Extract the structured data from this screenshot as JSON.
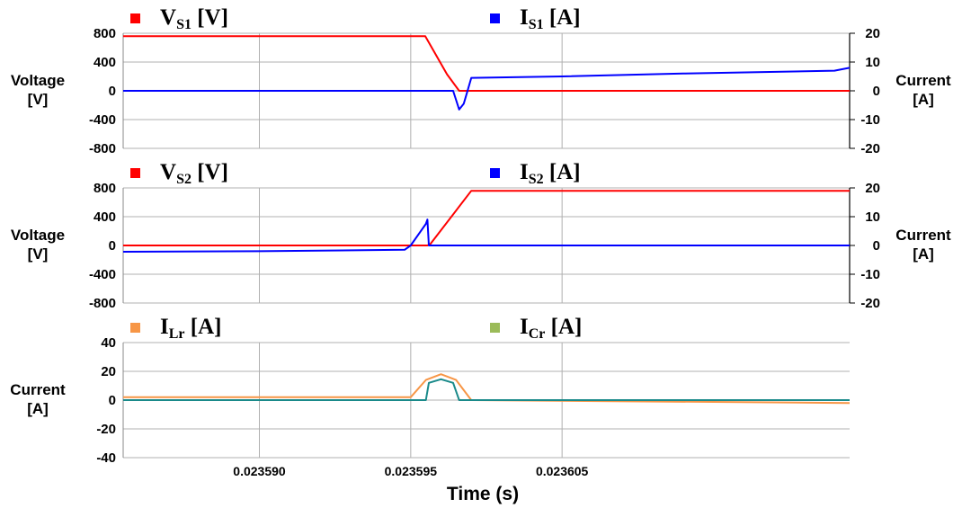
{
  "x_axis": {
    "label": "Time (s)",
    "range": [
      0.0235855,
      0.0236095
    ],
    "ticks": [
      "0.023590",
      "0.023595",
      "0.023605"
    ]
  },
  "chart_data": [
    {
      "type": "line",
      "left_axis": {
        "label": [
          "Voltage",
          "[V]"
        ],
        "range": [
          -800,
          800
        ],
        "ticks": [
          "800",
          "400",
          "0",
          "-400",
          "-800"
        ]
      },
      "right_axis": {
        "label": [
          "Current",
          "[A]"
        ],
        "range": [
          -20,
          20
        ],
        "ticks": [
          "20",
          "10",
          "0",
          "-10",
          "-20"
        ]
      },
      "grid": true,
      "series": [
        {
          "legend_main": "V",
          "legend_sub": "S1",
          "legend_unit": " [V]",
          "color": "#ff0000",
          "axis": "left",
          "x": [
            0.0235855,
            0.02359548,
            0.0235962,
            0.0235966,
            0.0236095
          ],
          "y": [
            760,
            760,
            230,
            0,
            0
          ]
        },
        {
          "legend_main": "I",
          "legend_sub": "S1",
          "legend_unit": " [A]",
          "color": "#0000ff",
          "axis": "right",
          "x": [
            0.0235855,
            0.0235964,
            0.0235966,
            0.02359675,
            0.02359685,
            0.023597,
            0.0236,
            0.023604,
            0.023609,
            0.0236095
          ],
          "y": [
            0,
            0,
            -6.5,
            -4.5,
            -1,
            4.5,
            5.0,
            6.0,
            7.0,
            8.0
          ]
        }
      ]
    },
    {
      "type": "line",
      "left_axis": {
        "label": [
          "Voltage",
          "[V]"
        ],
        "range": [
          -800,
          800
        ],
        "ticks": [
          "800",
          "400",
          "0",
          "-400",
          "-800"
        ]
      },
      "right_axis": {
        "label": [
          "Current",
          "[A]"
        ],
        "range": [
          -20,
          20
        ],
        "ticks": [
          "20",
          "10",
          "0",
          "-10",
          "-20"
        ]
      },
      "grid": true,
      "series": [
        {
          "legend_main": "V",
          "legend_sub": "S2",
          "legend_unit": " [V]",
          "color": "#ff0000",
          "axis": "left",
          "x": [
            0.0235855,
            0.02359555,
            0.02359565,
            0.023597,
            0.0236095
          ],
          "y": [
            0,
            0,
            20,
            760,
            760
          ]
        },
        {
          "legend_main": "I",
          "legend_sub": "S2",
          "legend_unit": " [A]",
          "color": "#0000ff",
          "axis": "right",
          "x": [
            0.0235855,
            0.02359,
            0.0235948,
            0.023595,
            0.0235955,
            0.02359555,
            0.0235956,
            0.0236095
          ],
          "y": [
            -2.2,
            -2.0,
            -1.5,
            0,
            7.5,
            9.0,
            0,
            0
          ]
        }
      ]
    },
    {
      "type": "line",
      "left_axis": {
        "label": [
          "Current",
          "[A]"
        ],
        "range": [
          -40,
          40
        ],
        "ticks": [
          "40",
          "20",
          "0",
          "-20",
          "-40"
        ]
      },
      "grid": true,
      "series": [
        {
          "legend_main": "I",
          "legend_sub": "Lr",
          "legend_unit": " [A]",
          "color": "#f79646",
          "axis": "left",
          "x": [
            0.0235855,
            0.023595,
            0.0235955,
            0.023596,
            0.0235965,
            0.023597,
            0.0236095
          ],
          "y": [
            2,
            2,
            14,
            18,
            14,
            0,
            -2
          ]
        },
        {
          "legend_main": "I",
          "legend_sub": "Cr",
          "legend_unit": " [A]",
          "color": "#1a8a8a",
          "legend_color": "#9bbb59",
          "axis": "left",
          "x": [
            0.0235855,
            0.0235955,
            0.0235956,
            0.023596,
            0.0235964,
            0.0235966,
            0.0235968,
            0.023597,
            0.0236095
          ],
          "y": [
            0,
            0,
            12,
            14.5,
            12,
            0,
            0,
            0,
            0
          ]
        }
      ]
    }
  ]
}
